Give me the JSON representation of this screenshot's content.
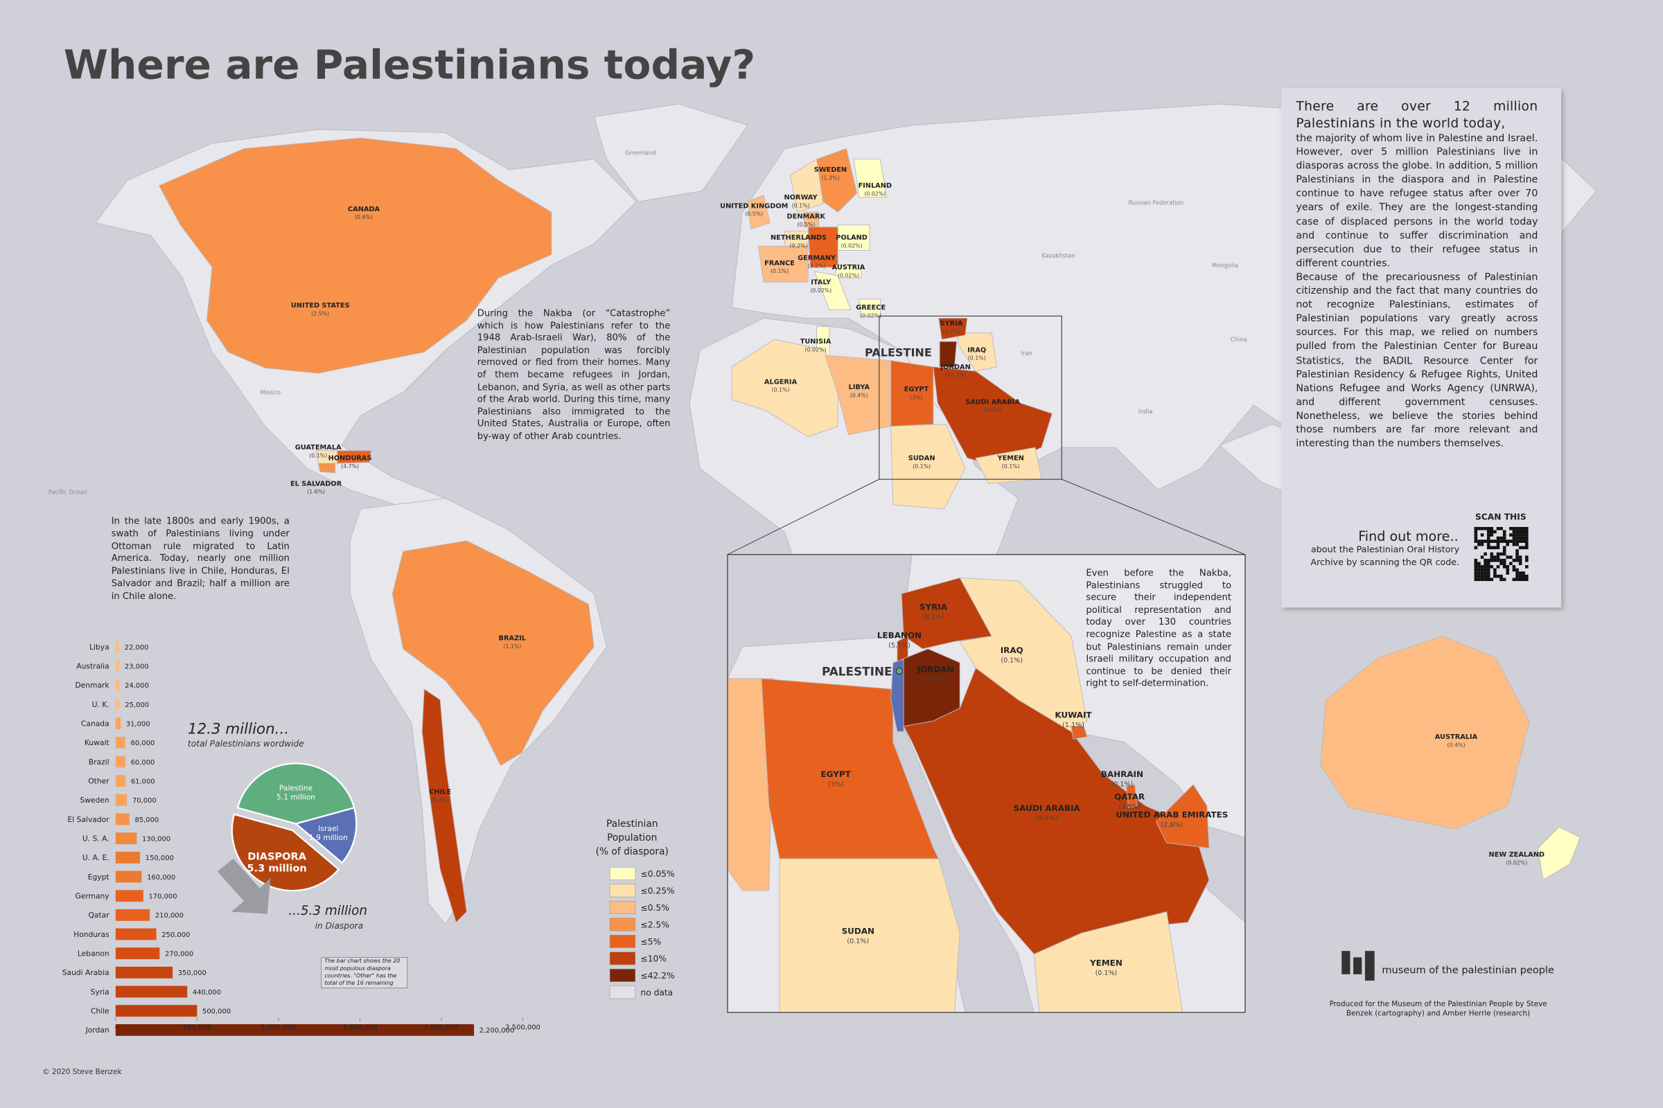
{
  "title": "Where are Palestinians today?",
  "intro": {
    "lead": "There are over 12 million Palestinians in the world today,",
    "body": [
      "the majority of whom live in Palestine and Israel. However, over 5 million Palestinians live in diasporas across the globe. In addition, 5 million Palestinians in the diaspora and in Palestine continue to have refugee status after over 70 years of exile. They are the longest-standing case of displaced persons in the world today and continue to suffer discrimination and persecution due to their refugee status in different countries.",
      "Because of the precariousness of Palestinian citizenship and the fact that many countries do not recognize Palestinians, estimates of Palestinian populations vary greatly across sources. For this map, we relied on numbers pulled from the Palestinian Center for Bureau Statistics, the BADIL Resource Center for Palestinian Residency & Refugee Rights, United Nations Refugee and Works Agency (UNRWA), and different government censuses. Nonetheless, we believe the stories behind those numbers are far more relevant and interesting than the numbers themselves."
    ]
  },
  "qr": {
    "scan": "SCAN THIS",
    "heading": "Find out more..",
    "text": "about the Palestinian Oral History Archive by scanning the QR code."
  },
  "notes": {
    "nakba": "During the Nakba (or “Catastrophe” which is how Palestinians refer to the 1948 Arab-Israeli War), 80% of the Palestinian population was forcibly removed or fled from their homes. Many of them became refugees in Jordan, Lebanon, and Syria, as well as other parts of the Arab world. During this time, many Palestinians also immigrated to the United States, Australia or Europe, often by-way of other Arab countries.",
    "latin_america": "In the late 1800s and early 1900s, a swath of Palestinians living under Ottoman rule migrated to Latin America. Today, nearly one million Palestinians live in Chile, Honduras, El Salvador and Brazil; half a million are in Chile alone.",
    "inset": "Even before the Nakba, Palestinians struggled to secure their independent political representation and today over 130 countries recognize Palestine as a state but Palestinians remain under Israeli military occupation and continue to be denied their right to self-determination."
  },
  "map": {
    "places": [
      "Greenland",
      "Russian Federation",
      "Pacific Ocean",
      "Mexico",
      "Kazakhstan",
      "Mongolia",
      "China",
      "Iran",
      "India"
    ],
    "labels": [
      {
        "name": "CANADA",
        "note": "(0.6%)"
      },
      {
        "name": "UNITED STATES",
        "note": "(2.5%)"
      },
      {
        "name": "GUATEMALA",
        "note": "(0.1%)"
      },
      {
        "name": "HONDURAS",
        "note": "(4.7%)"
      },
      {
        "name": "EL SALVADOR",
        "note": "(1.6%)"
      },
      {
        "name": "BRAZIL",
        "note": "(1.1%)"
      },
      {
        "name": "CHILE",
        "note": "(9.4%)"
      },
      {
        "name": "SWEDEN",
        "note": "(1.3%)"
      },
      {
        "name": "FINLAND",
        "note": "(0.02%)"
      },
      {
        "name": "NORWAY",
        "note": "(0.1%)"
      },
      {
        "name": "UNITED KINGDOM",
        "note": "(0.5%)"
      },
      {
        "name": "DENMARK",
        "note": "(0.5%)"
      },
      {
        "name": "NETHERLANDS",
        "note": "(0.2%)"
      },
      {
        "name": "POLAND",
        "note": "(0.02%)"
      },
      {
        "name": "GERMANY",
        "note": "(3.2%)"
      },
      {
        "name": "FRANCE",
        "note": "(0.1%)"
      },
      {
        "name": "AUSTRIA",
        "note": "(0.02%)"
      },
      {
        "name": "ITALY",
        "note": "(0.02%)"
      },
      {
        "name": "GREECE",
        "note": "(0.02%)"
      },
      {
        "name": "TUNISIA",
        "note": "(0.02%)"
      },
      {
        "name": "ALGERIA",
        "note": "(0.1%)"
      },
      {
        "name": "LIBYA",
        "note": "(0.4%)"
      },
      {
        "name": "EGYPT",
        "note": "(3%)"
      },
      {
        "name": "SYRIA",
        "note": "(8.2%)"
      },
      {
        "name": "IRAQ",
        "note": "(0.1%)"
      },
      {
        "name": "JORDAN",
        "note": "(42.1%)"
      },
      {
        "name": "SAUDI ARABIA",
        "note": "(6.6%)"
      },
      {
        "name": "SUDAN",
        "note": "(0.1%)"
      },
      {
        "name": "YEMEN",
        "note": "(0.1%)"
      },
      {
        "name": "AUSTRALIA",
        "note": "(0.4%)"
      },
      {
        "name": "NEW ZEALAND",
        "note": "(0.02%)"
      }
    ],
    "palestine": "PALESTINE",
    "inset_labels": [
      {
        "name": "SYRIA",
        "note": "(8.2%)"
      },
      {
        "name": "LEBANON",
        "note": "(5.1%)"
      },
      {
        "name": "JORDAN",
        "note": "(42.1%)"
      },
      {
        "name": "IRAQ",
        "note": "(0.1%)"
      },
      {
        "name": "KUWAIT",
        "note": "(1.1%)"
      },
      {
        "name": "BAHRAIN",
        "note": "(0.1%)"
      },
      {
        "name": "QATAR",
        "note": "(3.9%)"
      },
      {
        "name": "UNITED ARAB EMIRATES",
        "note": "(2.8%)"
      },
      {
        "name": "EGYPT",
        "note": "(3%)"
      },
      {
        "name": "SAUDI ARABIA",
        "note": "(6.6%)"
      },
      {
        "name": "SUDAN",
        "note": "(0.1%)"
      },
      {
        "name": "YEMEN",
        "note": "(0.1%)"
      }
    ]
  },
  "legend": {
    "title": [
      "Palestinian",
      "Population",
      "(% of diaspora)"
    ],
    "items": [
      {
        "label": "≤0.05%",
        "color": "#ffffc4"
      },
      {
        "label": "≤0.25%",
        "color": "#fde2b0"
      },
      {
        "label": "≤0.5%",
        "color": "#fcbc84"
      },
      {
        "label": "≤2.5%",
        "color": "#f8924a"
      },
      {
        "label": "≤5%",
        "color": "#e8621f"
      },
      {
        "label": "≤10%",
        "color": "#bf3f0c"
      },
      {
        "label": "≤42.2%",
        "color": "#7a2508"
      },
      {
        "label": "no data",
        "color": "#e2e2e6"
      }
    ]
  },
  "chart_data": [
    {
      "type": "bar",
      "orientation": "horizontal",
      "categories": [
        "Libya",
        "Australia",
        "Denmark",
        "U. K.",
        "Canada",
        "Kuwait",
        "Brazil",
        "Other",
        "Sweden",
        "El Salvador",
        "U. S. A.",
        "U. A. E.",
        "Egypt",
        "Germany",
        "Qatar",
        "Honduras",
        "Lebanon",
        "Saudi Arabia",
        "Syria",
        "Chile",
        "Jordan"
      ],
      "values": [
        22000,
        23000,
        24000,
        25000,
        31000,
        60000,
        60000,
        61000,
        70000,
        85000,
        130000,
        150000,
        160000,
        170000,
        210000,
        250000,
        270000,
        350000,
        440000,
        500000,
        2200000
      ],
      "value_labels": [
        "22,000",
        "23,000",
        "24,000",
        "25,000",
        "31,000",
        "60,000",
        "60,000",
        "61,000",
        "70,000",
        "85,000",
        "130,000",
        "150,000",
        "160,000",
        "170,000",
        "210,000",
        "250,000",
        "270,000",
        "350,000",
        "440,000",
        "500,000",
        "2,200,000"
      ],
      "colors": [
        "#fcbc84",
        "#fcbc84",
        "#fcbc84",
        "#fcbc84",
        "#f8a45c",
        "#f8a45c",
        "#f8a45c",
        "#f8a45c",
        "#f8a45c",
        "#f8924a",
        "#f08a3c",
        "#ec7a30",
        "#ec7a30",
        "#e8621f",
        "#e8621f",
        "#e0561a",
        "#d44e14",
        "#c8450f",
        "#c4430f",
        "#bf3f0c",
        "#7a2508"
      ],
      "xlim": [
        0,
        2500000
      ],
      "xticks": [
        {
          "value": 0,
          "label": "-"
        },
        {
          "value": 500000,
          "label": "500,000"
        },
        {
          "value": 1000000,
          "label": "1,000,000"
        },
        {
          "value": 1500000,
          "label": "1,500,000"
        },
        {
          "value": 2000000,
          "label": "2,000,000"
        },
        {
          "value": 2500000,
          "label": "2,500,000"
        }
      ]
    },
    {
      "type": "pie",
      "categories": [
        "Palestine",
        "Israel",
        "DIASPORA"
      ],
      "values": [
        5.1,
        1.9,
        5.3
      ],
      "value_labels": [
        "5.1 million",
        "1.9 million",
        "5.3 million"
      ],
      "colors": [
        "#5fae7e",
        "#5a6fb4",
        "#b5450f"
      ]
    }
  ],
  "pie_notes": {
    "total": "12.3 million...",
    "total_sub": "total Palestinians wordwide",
    "diaspora": "...5.3 million",
    "diaspora_sub": "in Diaspora"
  },
  "bar_note": "The bar chart shows the 20 most populous diaspora countries. \"Other\" has the total of the 16 remaining countries.",
  "logo": "museum of the palestinian people",
  "credits": "Produced for the Museum of the Palestinian People by Steve Benzek (cartography) and Amber Herrle (research)",
  "copyright": "© 2020 Steve Benzek"
}
